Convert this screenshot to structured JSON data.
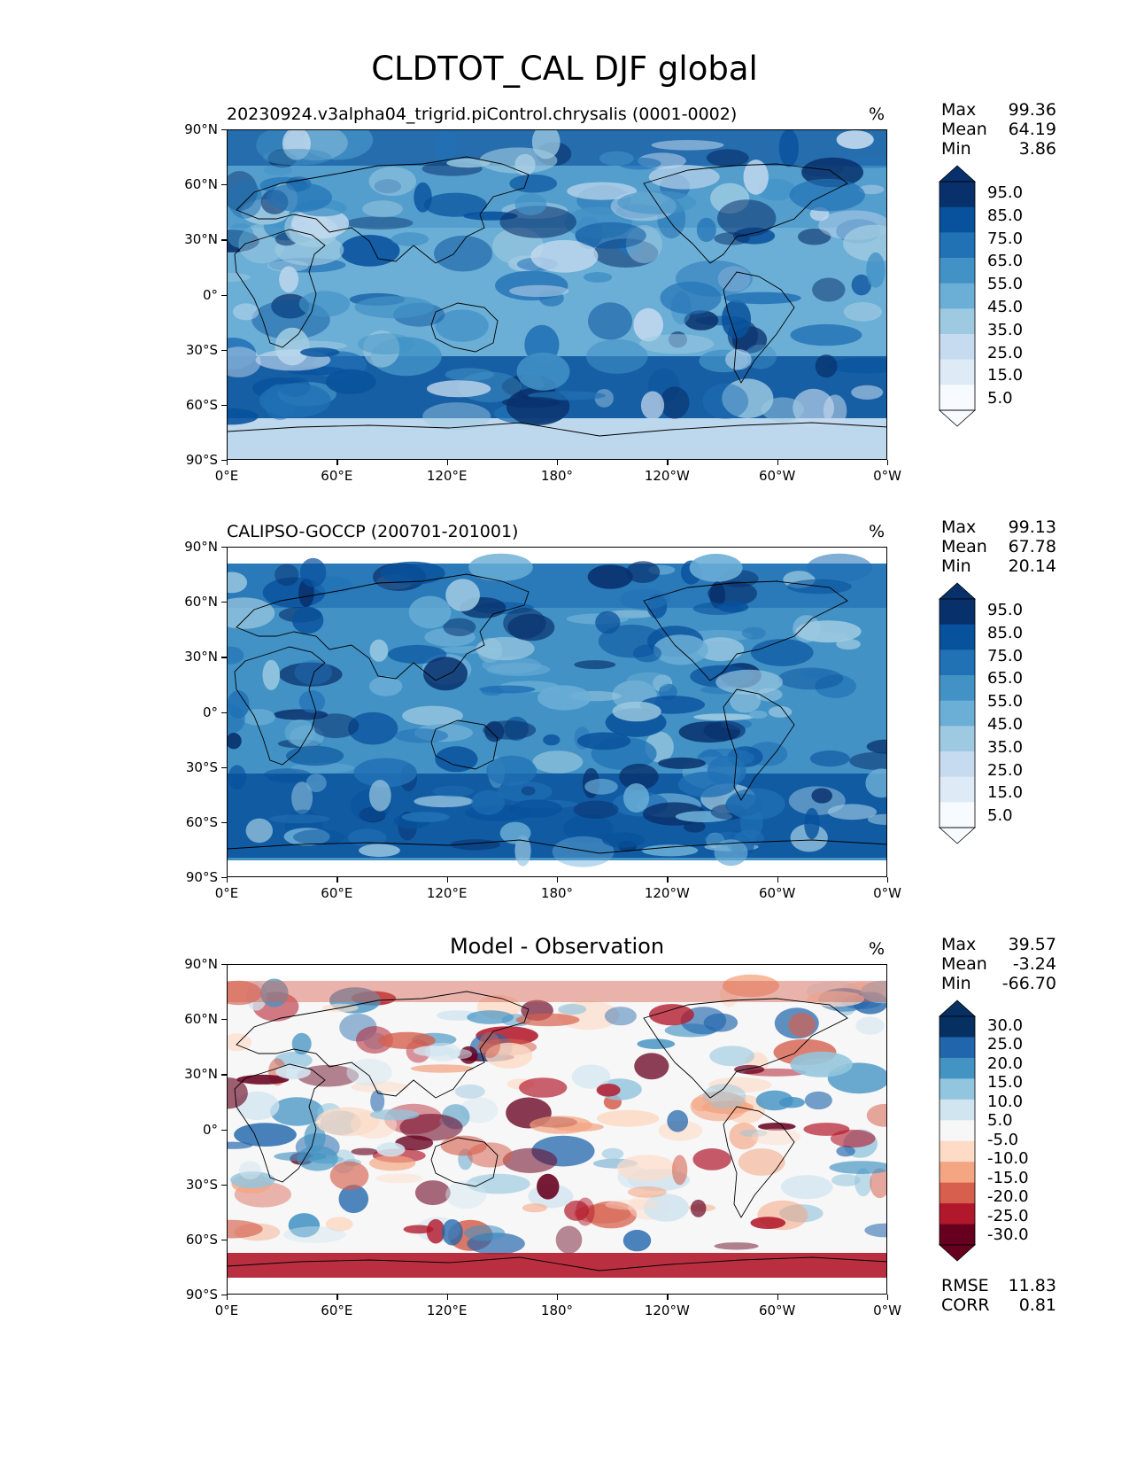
{
  "figure_title": "CLDTOT_CAL DJF global",
  "units": "%",
  "x_tick_labels": [
    "0°E",
    "60°E",
    "120°E",
    "180°",
    "120°W",
    "60°W",
    "0°W"
  ],
  "y_tick_labels": [
    "90°N",
    "60°N",
    "30°N",
    "0°",
    "30°S",
    "60°S",
    "90°S"
  ],
  "panels": [
    {
      "title": "20230924.v3alpha04_trigrid.piControl.chrysalis (0001-0002)",
      "stats": [
        {
          "label": "Max",
          "value": "99.36"
        },
        {
          "label": "Mean",
          "value": "64.19"
        },
        {
          "label": "Min",
          "value": "3.86"
        }
      ],
      "colorbar_labels": [
        "95.0",
        "85.0",
        "75.0",
        "65.0",
        "55.0",
        "45.0",
        "35.0",
        "25.0",
        "15.0",
        "5.0"
      ],
      "colorbar_colors": [
        "#08306b",
        "#08519c",
        "#2171b5",
        "#4292c6",
        "#6baed6",
        "#9ecae1",
        "#c6dbef",
        "#deebf7",
        "#f7fbff"
      ],
      "extra_stats": []
    },
    {
      "title": "CALIPSO-GOCCP (200701-201001)",
      "stats": [
        {
          "label": "Max",
          "value": "99.13"
        },
        {
          "label": "Mean",
          "value": "67.78"
        },
        {
          "label": "Min",
          "value": "20.14"
        }
      ],
      "colorbar_labels": [
        "95.0",
        "85.0",
        "75.0",
        "65.0",
        "55.0",
        "45.0",
        "35.0",
        "25.0",
        "15.0",
        "5.0"
      ],
      "colorbar_colors": [
        "#08306b",
        "#08519c",
        "#2171b5",
        "#4292c6",
        "#6baed6",
        "#9ecae1",
        "#c6dbef",
        "#deebf7",
        "#f7fbff"
      ],
      "extra_stats": []
    },
    {
      "title": "Model - Observation",
      "stats": [
        {
          "label": "Max",
          "value": "39.57"
        },
        {
          "label": "Mean",
          "value": "-3.24"
        },
        {
          "label": "Min",
          "value": "-66.70"
        }
      ],
      "colorbar_labels": [
        "30.0",
        "25.0",
        "20.0",
        "15.0",
        "10.0",
        "5.0",
        "-5.0",
        "-10.0",
        "-15.0",
        "-20.0",
        "-25.0",
        "-30.0"
      ],
      "colorbar_colors": [
        "#053061",
        "#2166ac",
        "#4393c3",
        "#92c5de",
        "#d1e5f0",
        "#f7f7f7",
        "#fddbc7",
        "#f4a582",
        "#d6604d",
        "#b2182b",
        "#67001f"
      ],
      "extra_stats": [
        {
          "label": "RMSE",
          "value": "11.83"
        },
        {
          "label": "CORR",
          "value": "0.81"
        }
      ]
    }
  ]
}
